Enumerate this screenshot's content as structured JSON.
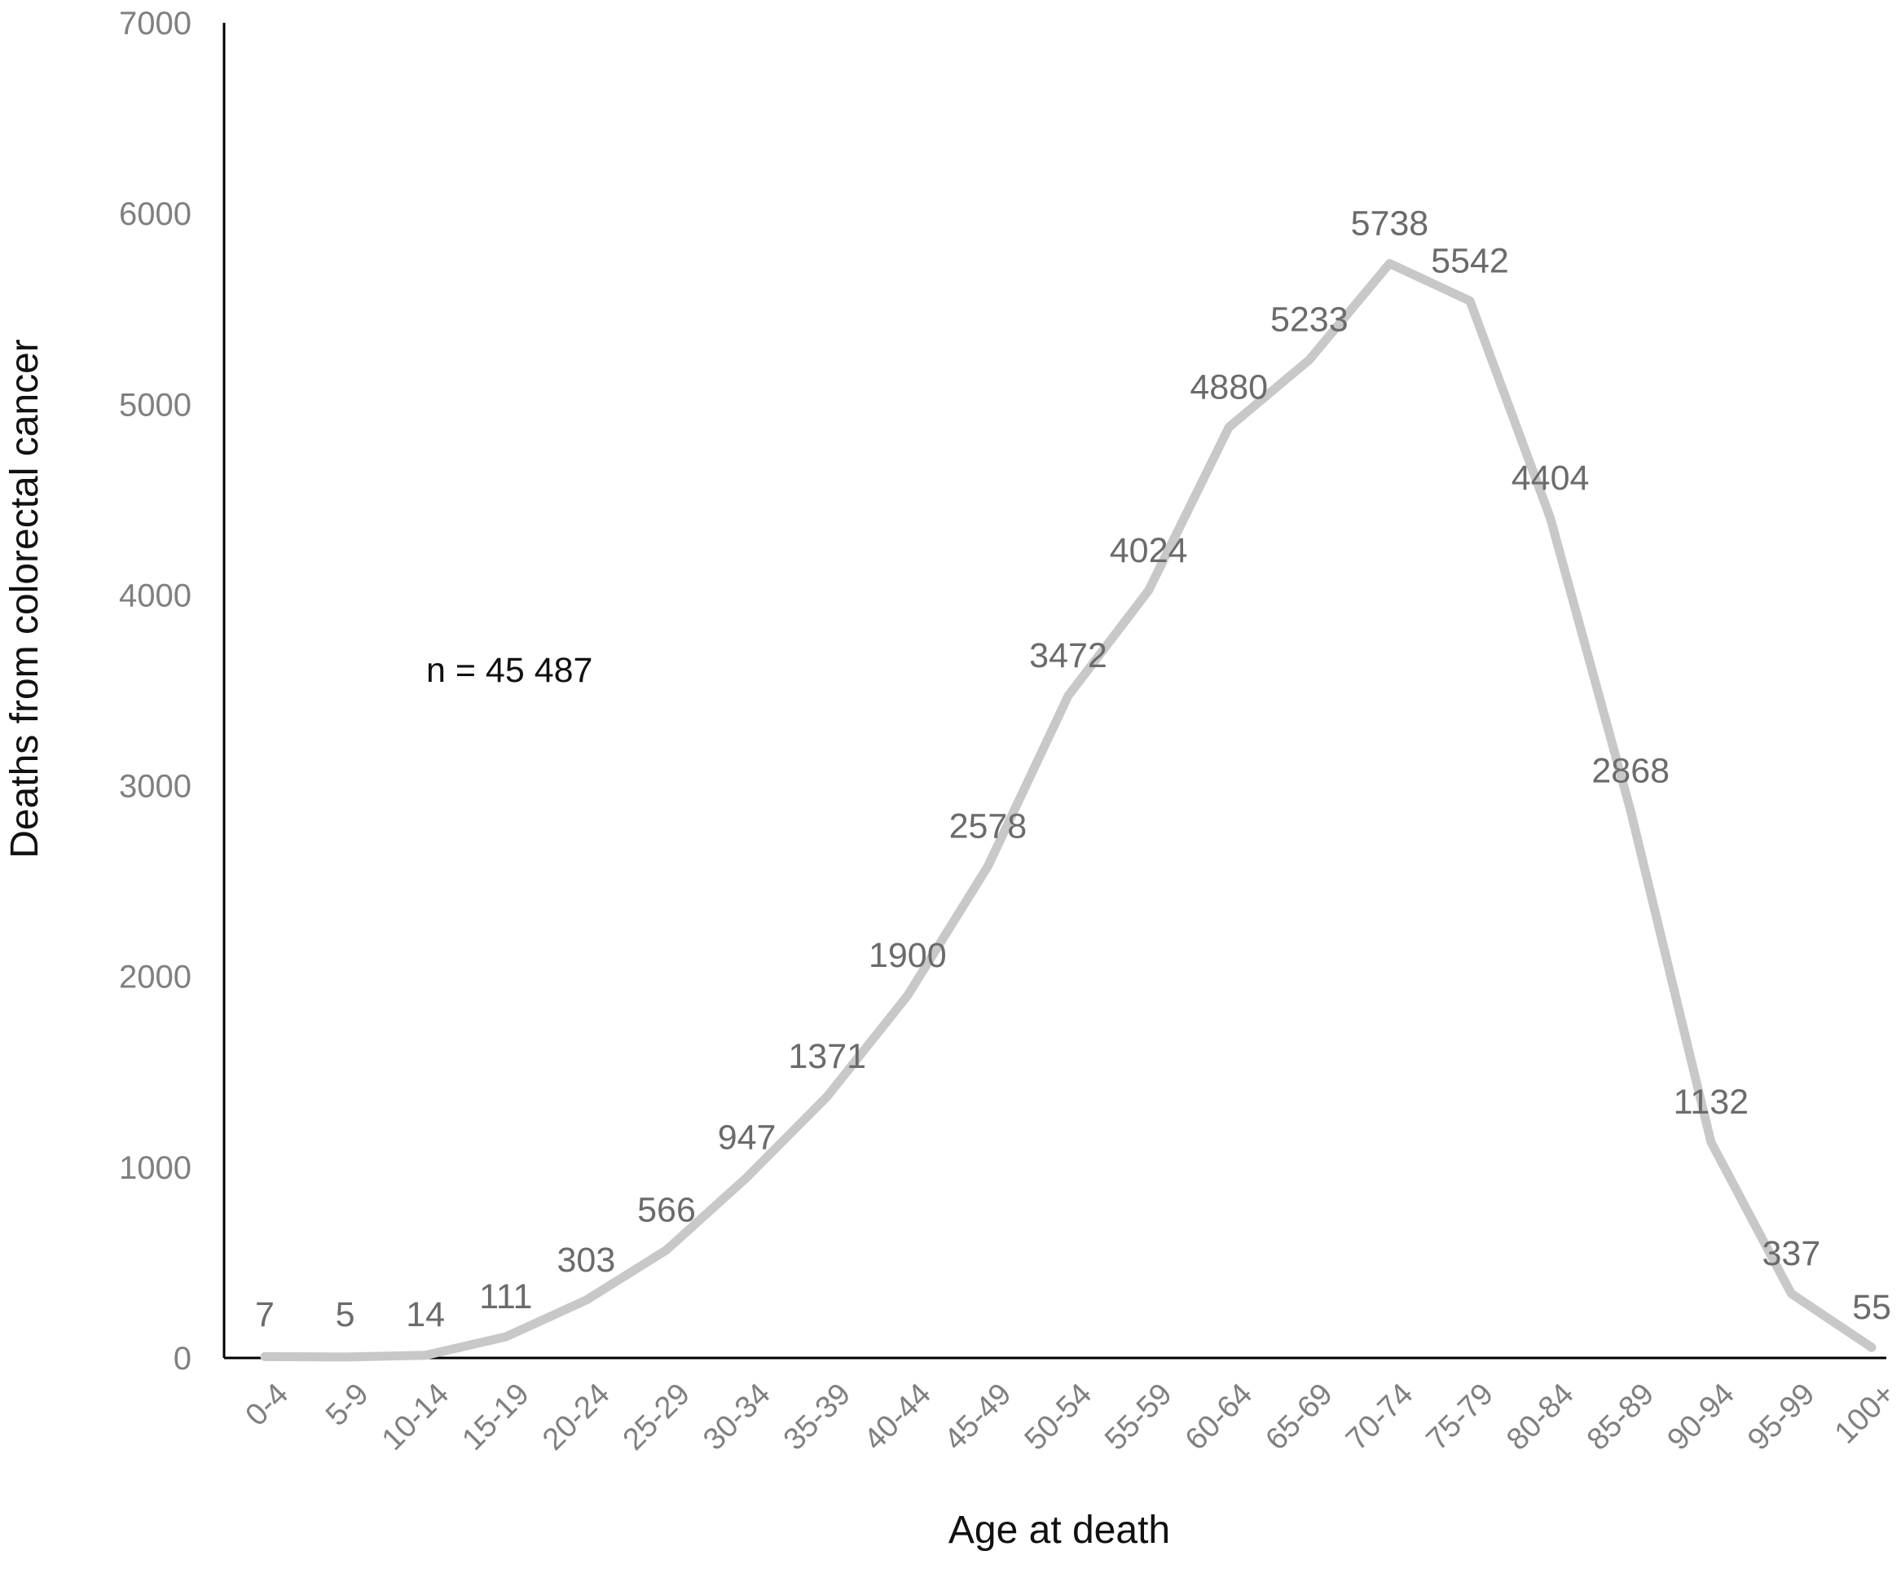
{
  "chart_data": {
    "type": "line",
    "xlabel": "Age at death",
    "ylabel": "Deaths from colorectal cancer",
    "ylim": [
      0,
      7000
    ],
    "yticks": [
      0,
      1000,
      2000,
      3000,
      4000,
      5000,
      6000,
      7000
    ],
    "categories": [
      "0-4",
      "5-9",
      "10-14",
      "15-19",
      "20-24",
      "25-29",
      "30-34",
      "35-39",
      "40-44",
      "45-49",
      "50-54",
      "55-59",
      "60-64",
      "65-69",
      "70-74",
      "75-79",
      "80-84",
      "85-89",
      "90-94",
      "95-99",
      "100+"
    ],
    "values": [
      7,
      5,
      14,
      111,
      303,
      566,
      947,
      1371,
      1900,
      2578,
      3472,
      4024,
      4880,
      5233,
      5738,
      5542,
      4404,
      2868,
      1132,
      337,
      55
    ],
    "annotation": "n = 45 487",
    "line_color": "#c8c8c8",
    "grid": false,
    "legend": "none"
  }
}
